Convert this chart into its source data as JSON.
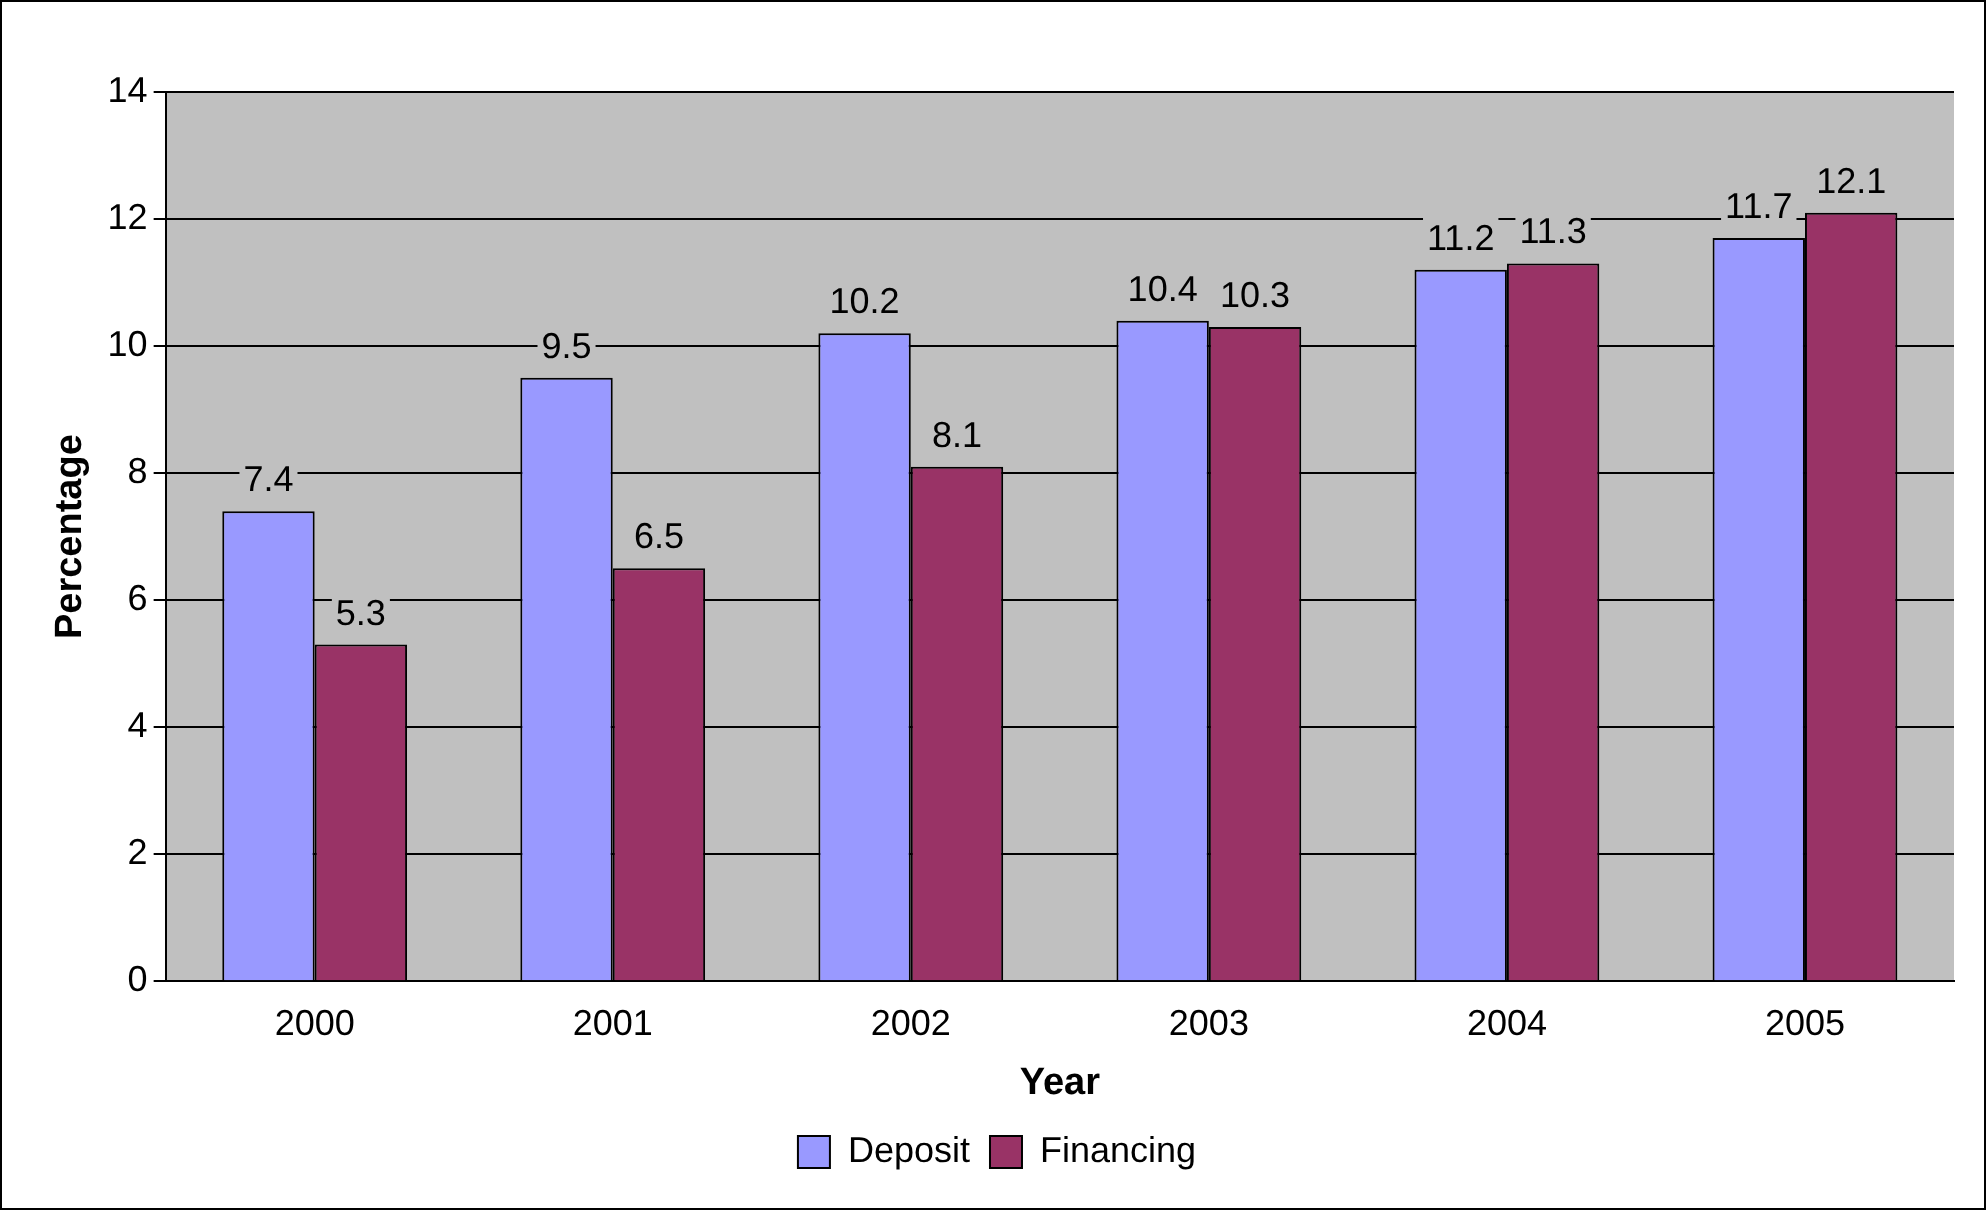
{
  "chart_data": {
    "type": "bar",
    "xlabel": "Year",
    "ylabel": "Percentage",
    "categories": [
      "2000",
      "2001",
      "2002",
      "2003",
      "2004",
      "2005"
    ],
    "series": [
      {
        "name": "Deposit",
        "color": "#9999ff",
        "values": [
          7.4,
          9.5,
          10.2,
          10.4,
          11.2,
          11.7
        ]
      },
      {
        "name": "Financing",
        "color": "#993366",
        "values": [
          5.3,
          6.5,
          8.1,
          10.3,
          11.3,
          12.1
        ]
      }
    ],
    "ylim": [
      0,
      14
    ],
    "yticks": [
      0,
      2,
      4,
      6,
      8,
      10,
      12,
      14
    ],
    "grid": "y",
    "legend": "bottom",
    "data_labels": true
  }
}
